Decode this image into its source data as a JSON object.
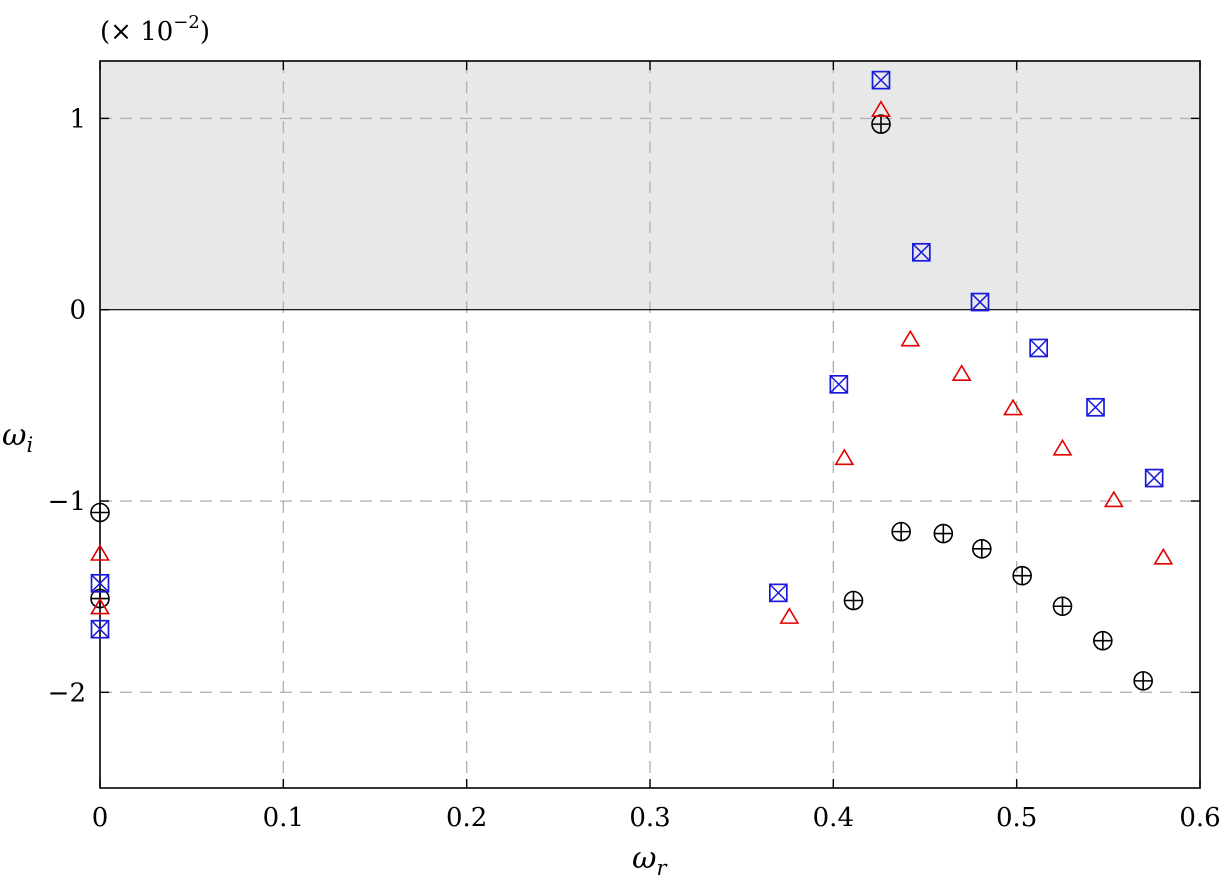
{
  "chart_data": {
    "type": "scatter",
    "xlabel": "ω",
    "xlabel_sub": "r",
    "ylabel": "ω",
    "ylabel_sub": "i",
    "y_scale_prefix": "(× 10",
    "y_scale_exp": "−2",
    "y_scale_suffix": ")",
    "xlim": [
      0,
      0.6
    ],
    "ylim": [
      -2.5,
      1.3
    ],
    "x_ticks": [
      {
        "value": 0,
        "label": "0"
      },
      {
        "value": 0.1,
        "label": "0.1"
      },
      {
        "value": 0.2,
        "label": "0.2"
      },
      {
        "value": 0.3,
        "label": "0.3"
      },
      {
        "value": 0.4,
        "label": "0.4"
      },
      {
        "value": 0.5,
        "label": "0.5"
      },
      {
        "value": 0.6,
        "label": "0.6"
      }
    ],
    "y_ticks": [
      {
        "value": -2,
        "label": "−2"
      },
      {
        "value": -1,
        "label": "−1"
      },
      {
        "value": 0,
        "label": "0"
      },
      {
        "value": 1,
        "label": "1"
      }
    ],
    "grid": true,
    "unstable_region": {
      "y_from": 0,
      "y_to": 1.3,
      "color": "#e8e8e8"
    },
    "series": [
      {
        "marker": "circle-plus",
        "color": "#000000",
        "points": [
          [
            0.0,
            -1.06
          ],
          [
            0.0,
            -1.51
          ],
          [
            0.426,
            0.97
          ],
          [
            0.411,
            -1.52
          ],
          [
            0.437,
            -1.16
          ],
          [
            0.46,
            -1.17
          ],
          [
            0.481,
            -1.25
          ],
          [
            0.503,
            -1.39
          ],
          [
            0.525,
            -1.55
          ],
          [
            0.547,
            -1.73
          ],
          [
            0.569,
            -1.94
          ]
        ]
      },
      {
        "marker": "triangle",
        "color": "#e00000",
        "points": [
          [
            0.0,
            -1.28
          ],
          [
            0.0,
            -1.56
          ],
          [
            0.426,
            1.04
          ],
          [
            0.376,
            -1.61
          ],
          [
            0.406,
            -0.78
          ],
          [
            0.442,
            -0.16
          ],
          [
            0.47,
            -0.34
          ],
          [
            0.498,
            -0.52
          ],
          [
            0.525,
            -0.73
          ],
          [
            0.553,
            -1.0
          ],
          [
            0.58,
            -1.3
          ]
        ]
      },
      {
        "marker": "square-x",
        "color": "#1a1adc",
        "points": [
          [
            0.0,
            -1.43
          ],
          [
            0.0,
            -1.67
          ],
          [
            0.426,
            1.2
          ],
          [
            0.448,
            0.3
          ],
          [
            0.48,
            0.04
          ],
          [
            0.37,
            -1.48
          ],
          [
            0.403,
            -0.39
          ],
          [
            0.512,
            -0.2
          ],
          [
            0.543,
            -0.51
          ],
          [
            0.575,
            -0.88
          ]
        ]
      }
    ]
  }
}
